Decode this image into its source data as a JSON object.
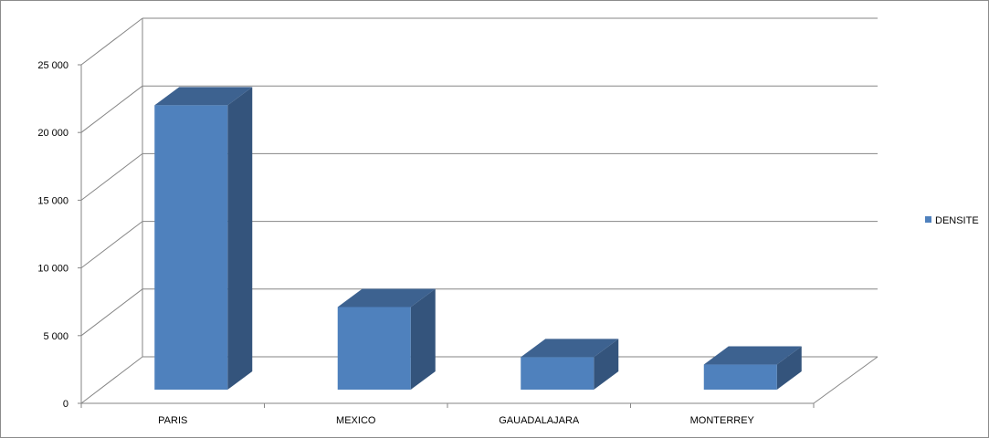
{
  "chart_data": {
    "type": "bar",
    "style": "3d-column",
    "categories": [
      "PARIS",
      "MEXICO",
      "GAUADALAJARA",
      "MONTERREY"
    ],
    "series": [
      {
        "name": "DENSITE",
        "values": [
          21000,
          6100,
          2400,
          1850
        ],
        "color": "#4f81bd"
      }
    ],
    "ylim": [
      0,
      25000
    ],
    "yticks": [
      0,
      5000,
      10000,
      15000,
      20000,
      25000
    ],
    "ytick_labels": [
      "0",
      "5 000",
      "10 000",
      "15 000",
      "20 000",
      "25 000"
    ],
    "grid": true,
    "legend_position": "right",
    "colors": {
      "front": "#4f81bd",
      "side": "#34547c",
      "top": "#3d6290",
      "grid": "#868686"
    }
  }
}
